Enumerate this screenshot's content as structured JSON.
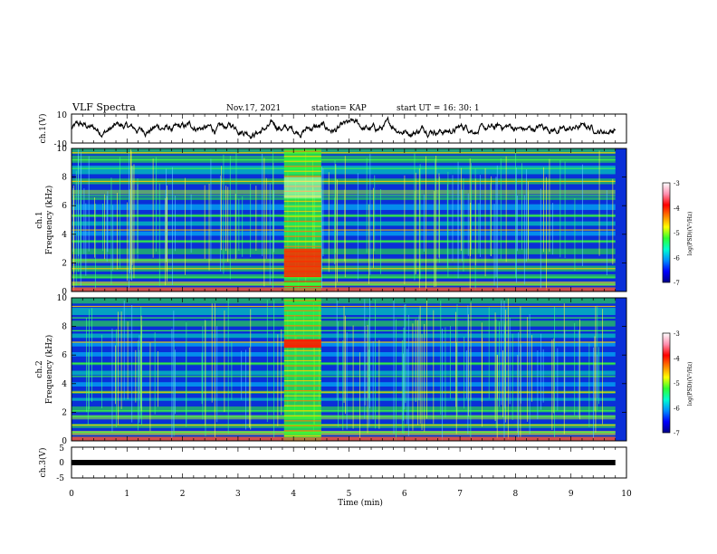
{
  "header": {
    "title": "VLF Spectra",
    "date": "Nov.17, 2021",
    "station": "station= KAP",
    "start_time": "start UT =  16: 30: 1"
  },
  "chart_data": [
    {
      "type": "line",
      "panel": "ch1-waveform",
      "ylabel": "ch.1(V)",
      "ylim": [
        -10,
        10
      ],
      "yticks": [
        "10",
        "-10"
      ],
      "xlim": [
        0,
        10
      ],
      "note_levels": [
        0.0,
        9.8
      ]
    },
    {
      "type": "heatmap",
      "panel": "ch1-spectrogram",
      "ylabel_ch": "ch.1",
      "ylabel": "Frequency (kHz)",
      "ylim": [
        0,
        10
      ],
      "yticks": [
        "0",
        "2",
        "4",
        "6",
        "8",
        "10"
      ],
      "xlim": [
        0,
        10
      ],
      "burst_interval_min": [
        3.83,
        4.5
      ],
      "colorbar": {
        "label": "log(PSD)(V²/Hz)",
        "range": [
          -7,
          -3
        ],
        "ticks": [
          "-3",
          "-4",
          "-5",
          "-6",
          "-7"
        ],
        "colors": [
          "#000088",
          "#0000ff",
          "#0090ff",
          "#00ffd0",
          "#30ff30",
          "#ffff00",
          "#ff8000",
          "#ff0000",
          "#ff90b0",
          "#ffffff"
        ]
      }
    },
    {
      "type": "heatmap",
      "panel": "ch2-spectrogram",
      "ylabel_ch": "ch.2",
      "ylabel": "Frequency (kHz)",
      "ylim": [
        0,
        10
      ],
      "yticks": [
        "0",
        "2",
        "4",
        "6",
        "8",
        "10"
      ],
      "xlim": [
        0,
        10
      ],
      "burst_interval_min": [
        3.83,
        4.5
      ],
      "colorbar": {
        "label": "log(PSD)(V²/Hz)",
        "range": [
          -7,
          -3
        ],
        "ticks": [
          "-3",
          "-4",
          "-5",
          "-6",
          "-7"
        ],
        "colors": [
          "#000088",
          "#0000ff",
          "#0090ff",
          "#00ffd0",
          "#30ff30",
          "#ffff00",
          "#ff8000",
          "#ff0000",
          "#ff90b0",
          "#ffffff"
        ]
      }
    },
    {
      "type": "line",
      "panel": "ch3-waveform",
      "ylabel": "ch.3(V)",
      "ylim": [
        -5,
        5
      ],
      "yticks": [
        "5",
        "0",
        "-5"
      ],
      "xlim": [
        0,
        10
      ],
      "x": [
        0,
        9.8
      ],
      "y": [
        0,
        0
      ],
      "xlabel": "Time (min)",
      "xticks": [
        "0",
        "1",
        "2",
        "3",
        "4",
        "5",
        "6",
        "7",
        "8",
        "9",
        "10"
      ]
    }
  ]
}
